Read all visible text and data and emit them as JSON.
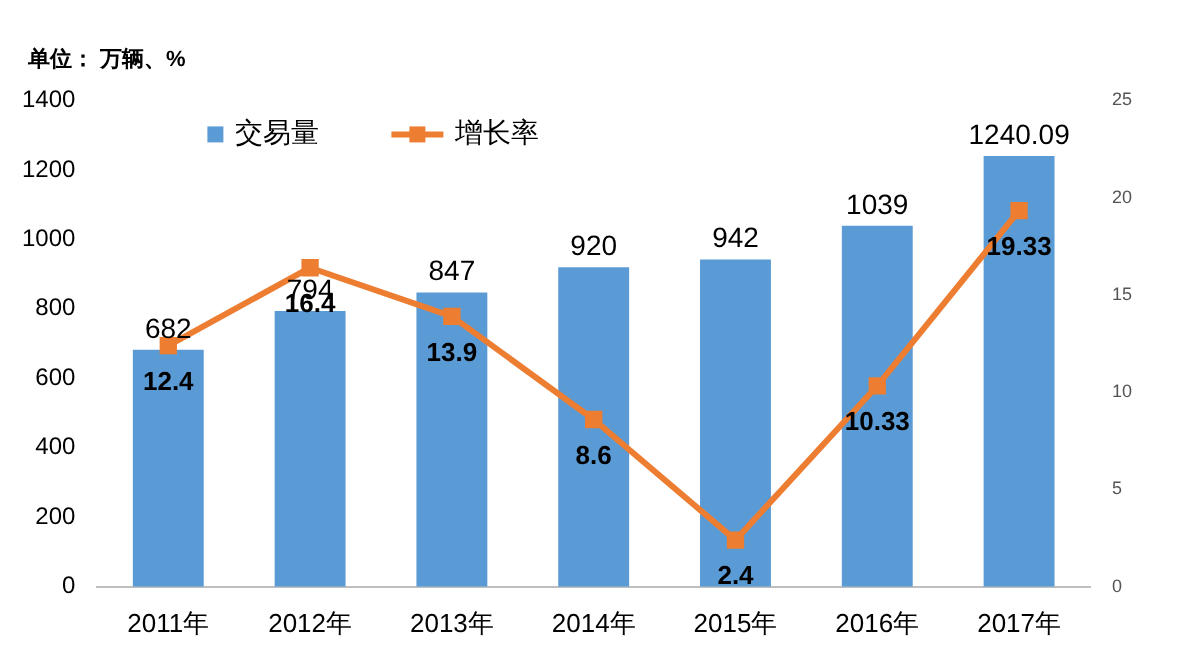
{
  "chart_data": {
    "type": "bar",
    "annotations": [
      "单位： 万辆、%"
    ],
    "categories": [
      "2011年",
      "2012年",
      "2013年",
      "2014年",
      "2015年",
      "2016年",
      "2017年"
    ],
    "series": [
      {
        "name": "交易量",
        "color": "#5b9bd5",
        "values": [
          682,
          794,
          847,
          920,
          942,
          1039,
          1240.09
        ]
      },
      {
        "name": "增长率",
        "type": "line",
        "axis": "y2",
        "color": "#ed7d31",
        "marker": "square",
        "values": [
          12.4,
          16.4,
          13.9,
          8.6,
          2.4,
          10.33,
          19.33
        ]
      }
    ],
    "ylim": [
      0,
      1400
    ],
    "yticks": [
      0,
      200,
      400,
      600,
      800,
      1000,
      1200,
      1400
    ],
    "y2lim": [
      0,
      25
    ],
    "y2ticks": [
      0,
      5,
      10,
      15,
      20,
      25
    ],
    "data_labels": true,
    "grid": false,
    "legend": "top left"
  }
}
